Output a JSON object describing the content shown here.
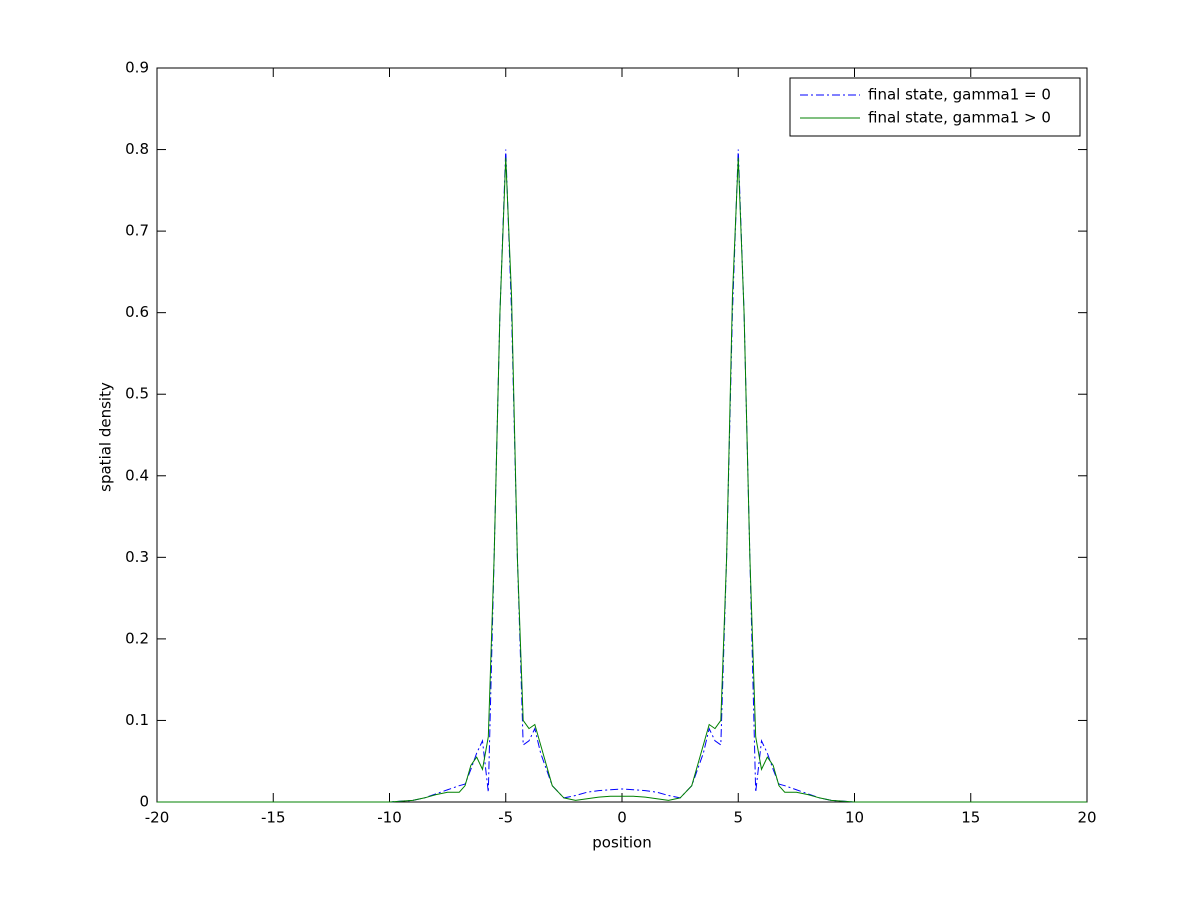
{
  "chart_data": {
    "type": "line",
    "xlabel": "position",
    "ylabel": "spatial density",
    "x": [
      -20,
      -15,
      -10,
      -9,
      -8.5,
      -8,
      -7.5,
      -7,
      -6.75,
      -6.5,
      -6.25,
      -6,
      -5.75,
      -5.5,
      -5.25,
      -5,
      -4.75,
      -4.5,
      -4.25,
      -4,
      -3.75,
      -3.5,
      -3,
      -2.5,
      -2,
      -1.5,
      -1,
      -0.5,
      0,
      0.5,
      1,
      1.5,
      2,
      2.5,
      3,
      3.5,
      3.75,
      4,
      4.25,
      4.5,
      4.75,
      5,
      5.25,
      5.5,
      5.75,
      6,
      6.25,
      6.5,
      6.75,
      7,
      7.5,
      8,
      8.5,
      9,
      10,
      15,
      20
    ],
    "series": [
      {
        "name": "final state, gamma1 = 0",
        "color": "#0000ff",
        "linestyle": "dashdot",
        "values": [
          0,
          0,
          0,
          0.002,
          0.005,
          0.01,
          0.015,
          0.02,
          0.022,
          0.04,
          0.06,
          0.075,
          0.012,
          0.3,
          0.6,
          0.8,
          0.6,
          0.3,
          0.07,
          0.075,
          0.09,
          0.06,
          0.02,
          0.005,
          0.008,
          0.012,
          0.014,
          0.015,
          0.016,
          0.015,
          0.014,
          0.012,
          0.008,
          0.005,
          0.02,
          0.06,
          0.09,
          0.075,
          0.07,
          0.3,
          0.6,
          0.8,
          0.6,
          0.3,
          0.012,
          0.075,
          0.06,
          0.04,
          0.022,
          0.02,
          0.015,
          0.01,
          0.005,
          0.002,
          0,
          0,
          0
        ]
      },
      {
        "name": "final state, gamma1 > 0",
        "color": "#008000",
        "linestyle": "solid",
        "values": [
          0,
          0,
          0,
          0.002,
          0.005,
          0.009,
          0.012,
          0.012,
          0.02,
          0.045,
          0.055,
          0.04,
          0.08,
          0.3,
          0.6,
          0.79,
          0.62,
          0.3,
          0.1,
          0.09,
          0.095,
          0.07,
          0.02,
          0.005,
          0.002,
          0.004,
          0.006,
          0.007,
          0.007,
          0.007,
          0.006,
          0.004,
          0.002,
          0.005,
          0.02,
          0.07,
          0.095,
          0.09,
          0.1,
          0.3,
          0.62,
          0.79,
          0.6,
          0.3,
          0.08,
          0.04,
          0.055,
          0.045,
          0.02,
          0.012,
          0.012,
          0.009,
          0.005,
          0.002,
          0,
          0,
          0
        ]
      }
    ],
    "xlim": [
      -20,
      20
    ],
    "xticks": [
      -20,
      -15,
      -10,
      -5,
      0,
      5,
      10,
      15,
      20
    ],
    "ylim": [
      0,
      0.9
    ],
    "yticks": [
      0,
      0.1,
      0.2,
      0.3,
      0.4,
      0.5,
      0.6,
      0.7,
      0.8,
      0.9
    ],
    "grid": false,
    "legend": "upper right"
  }
}
